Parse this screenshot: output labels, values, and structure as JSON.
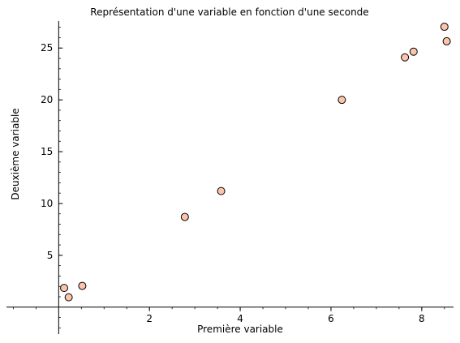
{
  "chart_data": {
    "type": "scatter",
    "title": "Représentation d'une variable en fonction d'une seconde",
    "xlabel": "Première variable",
    "ylabel": "Deuxième variable",
    "xlim": [
      -1.15,
      8.7
    ],
    "ylim": [
      -2.6,
      27.6
    ],
    "xticks": [
      2,
      4,
      6,
      8
    ],
    "yticks": [
      5,
      10,
      15,
      20,
      25
    ],
    "xtick_labels": [
      "2",
      "4",
      "6",
      "8"
    ],
    "ytick_labels": [
      "5",
      "10",
      "15",
      "20",
      "25"
    ],
    "grid": false,
    "marker_fill": "#fcc4ad",
    "marker_edge": "#000000",
    "points": [
      {
        "x": 0.12,
        "y": 1.85
      },
      {
        "x": 0.22,
        "y": 0.95
      },
      {
        "x": 0.52,
        "y": 2.05
      },
      {
        "x": 2.78,
        "y": 8.7
      },
      {
        "x": 3.58,
        "y": 11.2
      },
      {
        "x": 6.24,
        "y": 20.0
      },
      {
        "x": 7.63,
        "y": 24.1
      },
      {
        "x": 7.82,
        "y": 24.65
      },
      {
        "x": 8.5,
        "y": 27.05
      },
      {
        "x": 8.55,
        "y": 25.65
      }
    ]
  }
}
